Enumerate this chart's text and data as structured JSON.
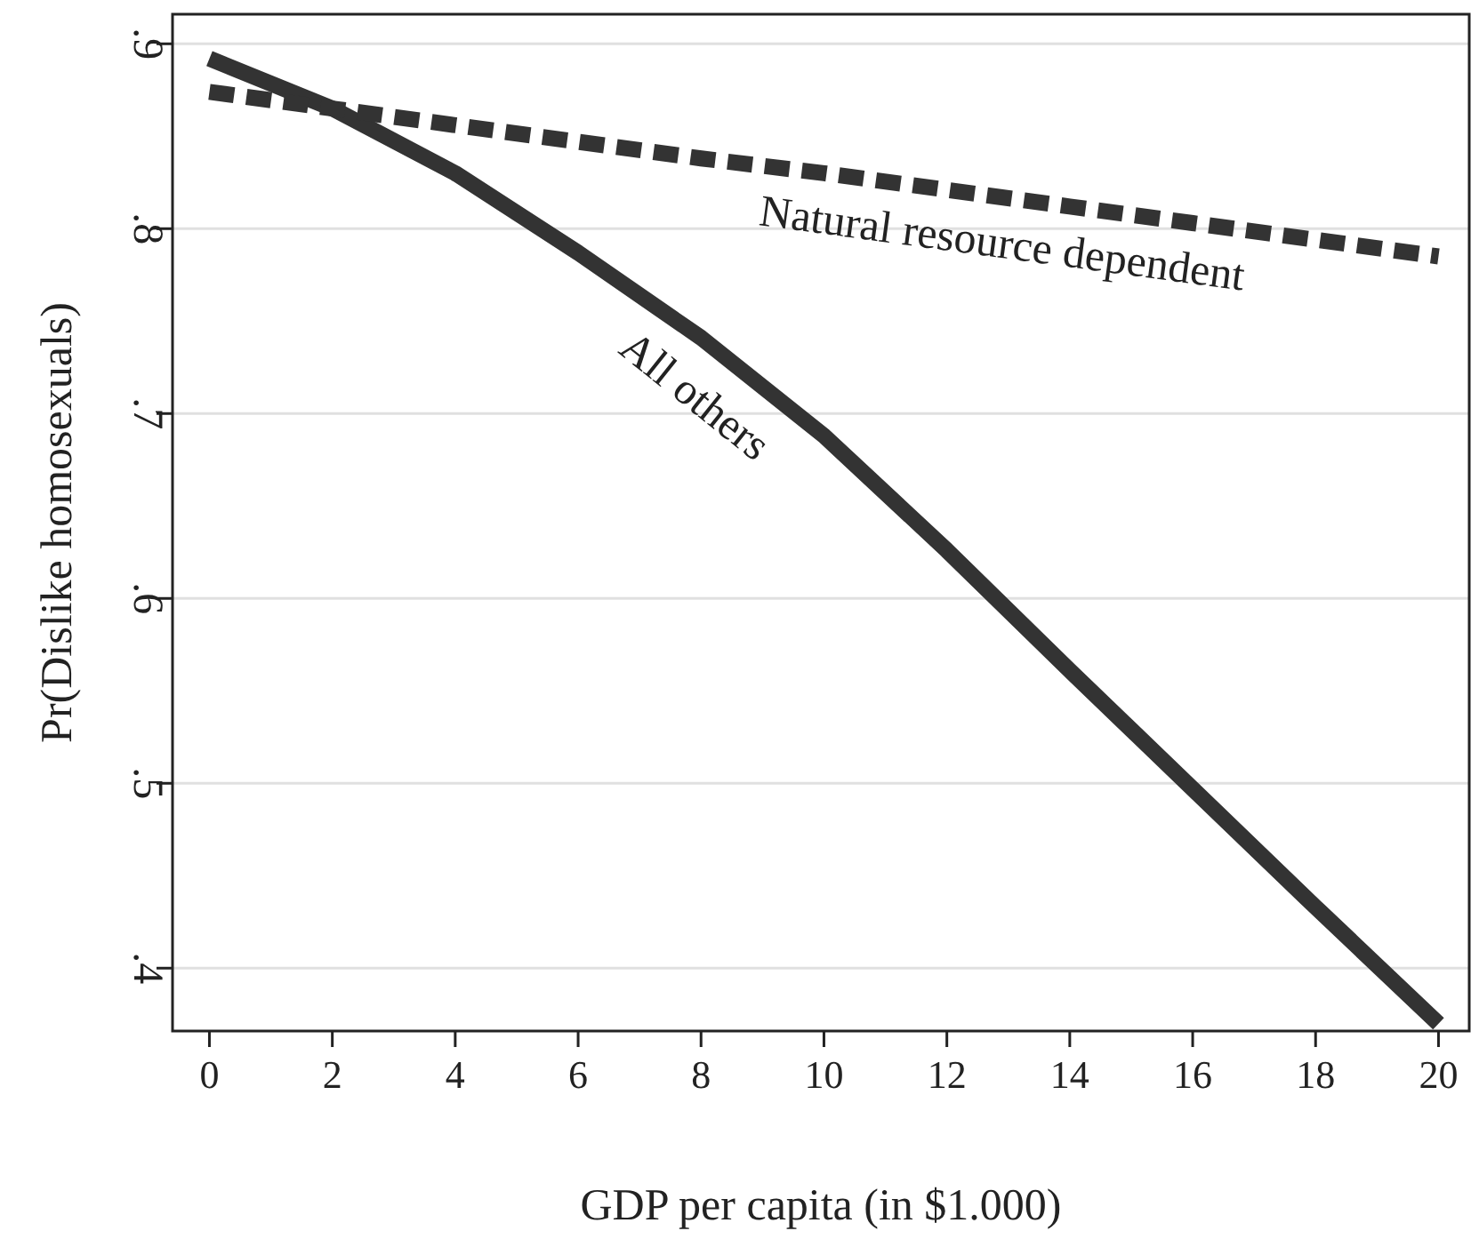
{
  "chart_data": {
    "type": "line",
    "xlabel": "GDP per capita (in $1.000)",
    "ylabel": "Pr(Dislike homosexuals)",
    "x": [
      0,
      2,
      4,
      6,
      8,
      10,
      12,
      14,
      16,
      18,
      20
    ],
    "series": [
      {
        "color": "#333333",
        "line_style": "solid",
        "values": [
          0.892,
          0.865,
          0.83,
          0.787,
          0.741,
          0.688,
          0.626,
          0.561,
          0.497,
          0.433,
          0.37
        ]
      },
      {
        "color": "#333333",
        "line_style": "dashed",
        "values": [
          0.874,
          0.865,
          0.856,
          0.847,
          0.838,
          0.83,
          0.821,
          0.812,
          0.803,
          0.794,
          0.785
        ]
      }
    ],
    "annotations": [
      "All others",
      "Natural resource dependent"
    ],
    "xlim": [
      -0.6,
      20.5
    ],
    "ylim": [
      0.366,
      0.916
    ],
    "xticks": [
      0,
      2,
      4,
      6,
      8,
      10,
      12,
      14,
      16,
      18,
      20
    ],
    "yticks": [
      {
        "value": 0.4,
        "label": ".4"
      },
      {
        "value": 0.5,
        "label": ".5"
      },
      {
        "value": 0.6,
        "label": ".6"
      },
      {
        "value": 0.7,
        "label": ".7"
      },
      {
        "value": 0.8,
        "label": ".8"
      },
      {
        "value": 0.9,
        "label": ".9"
      }
    ],
    "grid": "y",
    "marker": "none"
  }
}
